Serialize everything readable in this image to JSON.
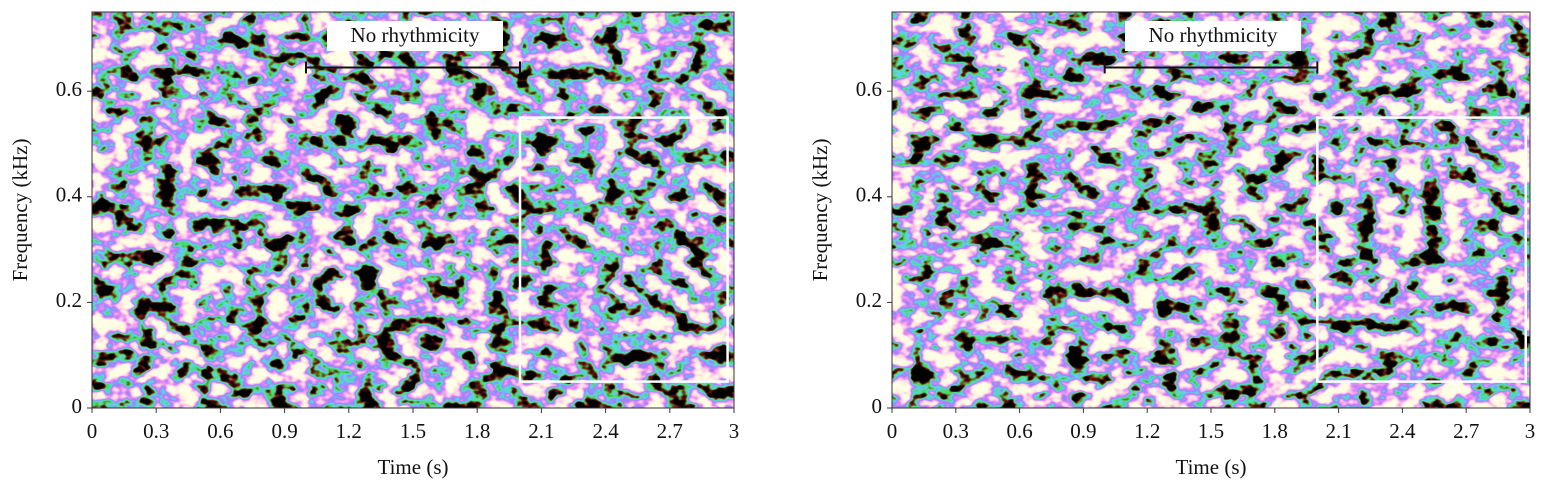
{
  "chart_data": [
    {
      "type": "spectrogram",
      "x_label": "Time (s)",
      "y_label": "Frequency (kHz)",
      "xlim": [
        0,
        3
      ],
      "ylim": [
        0,
        0.75
      ],
      "xticks": [
        0,
        0.3,
        0.6,
        0.9,
        1.2,
        1.5,
        1.8,
        2.1,
        2.4,
        2.7,
        3
      ],
      "yticks": [
        0,
        0.2,
        0.4,
        0.6
      ],
      "annotation": {
        "text": "No rhythmicity",
        "x": [
          1.0,
          2.0
        ],
        "y": 0.645
      },
      "box": {
        "x": [
          2.0,
          2.97
        ],
        "y": [
          0.05,
          0.55
        ]
      }
    },
    {
      "type": "spectrogram",
      "x_label": "Time (s)",
      "y_label": "Frequency (kHz)",
      "xlim": [
        0,
        3
      ],
      "ylim": [
        0,
        0.75
      ],
      "xticks": [
        0,
        0.3,
        0.6,
        0.9,
        1.2,
        1.5,
        1.8,
        2.1,
        2.4,
        2.7,
        3
      ],
      "yticks": [
        0,
        0.2,
        0.4,
        0.6
      ],
      "annotation": {
        "text": "No rhythmicity",
        "x": [
          1.0,
          2.0
        ],
        "y": 0.645
      },
      "box": {
        "x": [
          2.0,
          2.98
        ],
        "y": [
          0.05,
          0.55
        ]
      }
    }
  ]
}
